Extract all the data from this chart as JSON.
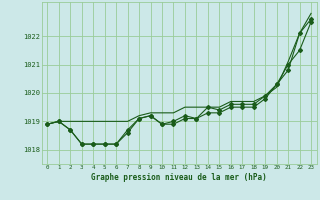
{
  "hours": [
    0,
    1,
    2,
    3,
    4,
    5,
    6,
    7,
    8,
    9,
    10,
    11,
    12,
    13,
    14,
    15,
    16,
    17,
    18,
    19,
    20,
    21,
    22,
    23
  ],
  "line1": [
    1018.9,
    1019.0,
    1018.7,
    1018.2,
    1018.2,
    1018.2,
    1018.2,
    1018.6,
    1019.1,
    1019.2,
    1018.9,
    1019.0,
    1019.2,
    1019.1,
    1019.5,
    1019.4,
    1019.6,
    1019.6,
    1019.6,
    1019.9,
    1020.3,
    1020.8,
    1022.1,
    1022.6
  ],
  "line2": [
    1018.9,
    1019.0,
    1018.7,
    1018.2,
    1018.2,
    1018.2,
    1018.2,
    1018.7,
    1019.1,
    1019.2,
    1018.9,
    1018.9,
    1019.1,
    1019.1,
    1019.3,
    1019.3,
    1019.5,
    1019.5,
    1019.5,
    1019.8,
    1020.3,
    1021.0,
    1021.5,
    1022.5
  ],
  "line3": [
    1018.9,
    1019.0,
    1019.0,
    1019.0,
    1019.0,
    1019.0,
    1019.0,
    1019.0,
    1019.2,
    1019.3,
    1019.3,
    1019.3,
    1019.5,
    1019.5,
    1019.5,
    1019.5,
    1019.7,
    1019.7,
    1019.7,
    1019.9,
    1020.2,
    1021.1,
    1022.1,
    1022.8
  ],
  "bg_color": "#cce8e8",
  "grid_color": "#99cc99",
  "line_color": "#1a5c1a",
  "title": "Graphe pression niveau de la mer (hPa)",
  "ylim_min": 1017.5,
  "ylim_max": 1023.2,
  "xlim_min": -0.5,
  "xlim_max": 23.5,
  "yticks": [
    1018,
    1019,
    1020,
    1021,
    1022
  ],
  "xticks": [
    0,
    1,
    2,
    3,
    4,
    5,
    6,
    7,
    8,
    9,
    10,
    11,
    12,
    13,
    14,
    15,
    16,
    17,
    18,
    19,
    20,
    21,
    22,
    23
  ]
}
